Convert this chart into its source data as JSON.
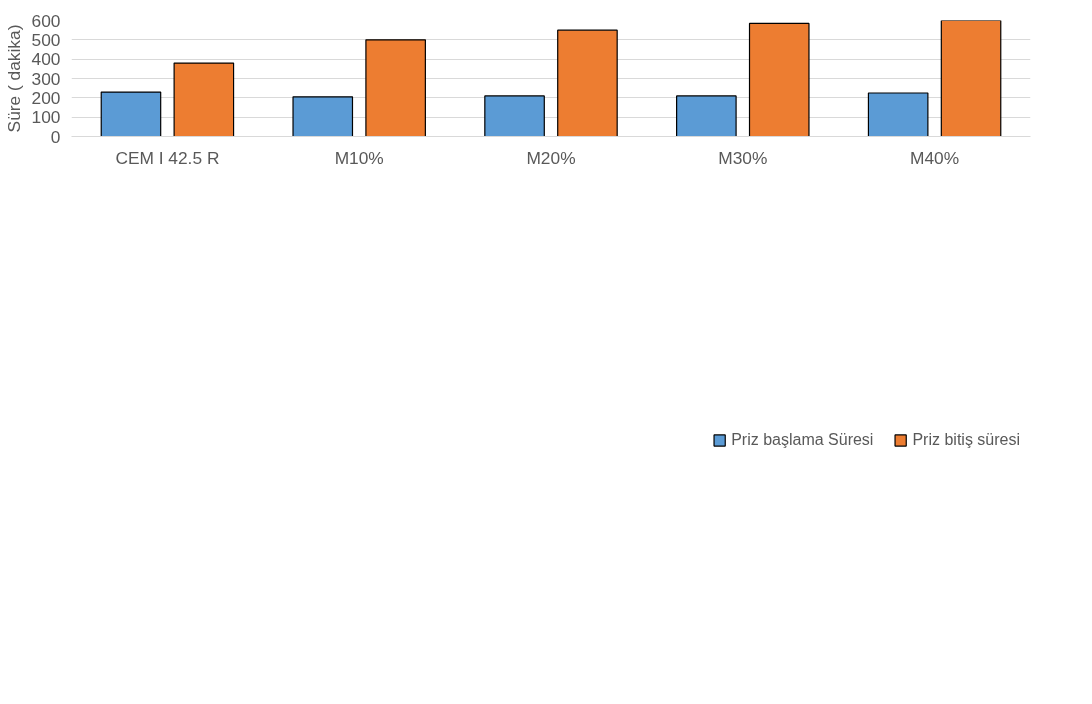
{
  "chart_data": {
    "type": "bar",
    "ylabel": "Süre ( dakika)",
    "categories": [
      "CEM I 42.5 R",
      "M10%",
      "M20%",
      "M30%",
      "M40%"
    ],
    "series": [
      {
        "name": "Priz başlama Süresi",
        "color": "#5b9bd5",
        "values": [
          230,
          205,
          210,
          210,
          225
        ]
      },
      {
        "name": "Priz bitiş süresi",
        "color": "#ed7d31",
        "values": [
          380,
          500,
          550,
          585,
          600
        ]
      }
    ],
    "ylim": [
      0,
      600
    ],
    "yticks": [
      0,
      100,
      200,
      300,
      400,
      500,
      600
    ],
    "grid": "y",
    "legend": "bottom"
  }
}
